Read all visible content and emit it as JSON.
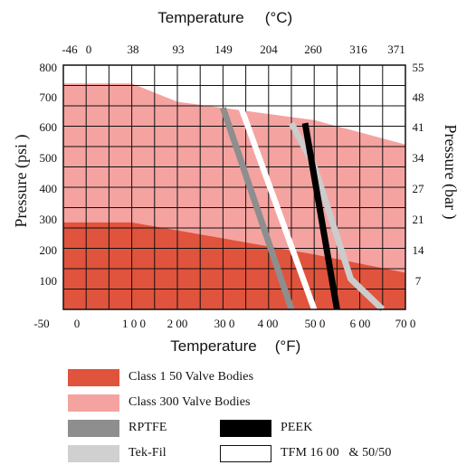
{
  "chart_data": {
    "type": "area",
    "title": "Temperature (°C)",
    "xlabel": "Temperature (°F)",
    "ylabel": "Pressure (psi)",
    "ylabel_right": "Pressure (bar)",
    "top_axis_title": "Temperature",
    "top_axis_unit": "°C",
    "bottom_axis_title": "Temperature",
    "bottom_axis_unit": "°F",
    "left_axis_title": "Pressure (psi )",
    "right_axis_title": "Pressure (bar )",
    "xlim": [
      -50,
      700
    ],
    "ylim": [
      0,
      800
    ],
    "grid": true,
    "x_ticks_f": [
      "-50",
      "0",
      "1 0 0",
      "2 00",
      "30 0",
      "4 00",
      "50 0",
      "6 00",
      "70 0"
    ],
    "x_ticks_f_values": [
      -50,
      0,
      100,
      200,
      300,
      400,
      500,
      600,
      700
    ],
    "x_ticks_c": [
      "-46",
      "0",
      "38",
      "93",
      "149",
      "204",
      "260",
      "316",
      "371"
    ],
    "x_ticks_c_values": [
      -46,
      0,
      38,
      93,
      149,
      204,
      260,
      316,
      371
    ],
    "y_ticks_psi": [
      "800",
      "700",
      "600",
      "500",
      "400",
      "300",
      "200",
      "100"
    ],
    "y_ticks_psi_values": [
      800,
      700,
      600,
      500,
      400,
      300,
      200,
      100
    ],
    "y_ticks_bar": [
      "55",
      "48",
      "41",
      "34",
      "27",
      "21",
      "14",
      "7"
    ],
    "y_ticks_bar_values": [
      55,
      48,
      41,
      34,
      27,
      21,
      14,
      7
    ],
    "areas": [
      {
        "name": "Class 300 Valve Bodies",
        "color": "#f5a3a0",
        "x": [
          -50,
          100,
          200,
          500,
          700
        ],
        "y": [
          740,
          740,
          680,
          620,
          540
        ]
      },
      {
        "name": "Class 1 50 Valve Bodies",
        "color": "#e0533d",
        "x": [
          -50,
          100,
          500,
          700
        ],
        "y": [
          285,
          285,
          180,
          120
        ]
      }
    ],
    "series": [
      {
        "name": "RPTFE",
        "color": "#8e8e8e",
        "x": [
          300,
          450
        ],
        "y": [
          660,
          0
        ]
      },
      {
        "name": "TFM 16 00 & 50/50",
        "color": "#ffffff",
        "x": [
          340,
          500
        ],
        "y": [
          660,
          0
        ]
      },
      {
        "name": "Tek-Fil",
        "color": "#cccccc",
        "x": [
          450,
          500,
          580,
          650
        ],
        "y": [
          610,
          470,
          100,
          0
        ]
      },
      {
        "name": "PEEK",
        "color": "#000000",
        "x": [
          480,
          550
        ],
        "y": [
          610,
          0
        ]
      }
    ]
  },
  "legend": [
    {
      "label": "Class 1 50 Valve Bodies",
      "color": "#e0533d",
      "icon": "swatch-dark-red"
    },
    {
      "label": "Class 300 Valve Bodies",
      "color": "#f5a3a0",
      "icon": "swatch-light-red"
    },
    {
      "label": "RPTFE",
      "color": "#8e8e8e",
      "icon": "swatch-gray"
    },
    {
      "label": "PEEK",
      "color": "#000000",
      "icon": "swatch-black"
    },
    {
      "label": "Tek-Fil",
      "color": "#d0d0d0",
      "icon": "swatch-light-gray"
    },
    {
      "label": "TFM 16 00   & 50/50",
      "color": "#ffffff",
      "icon": "swatch-white"
    }
  ]
}
